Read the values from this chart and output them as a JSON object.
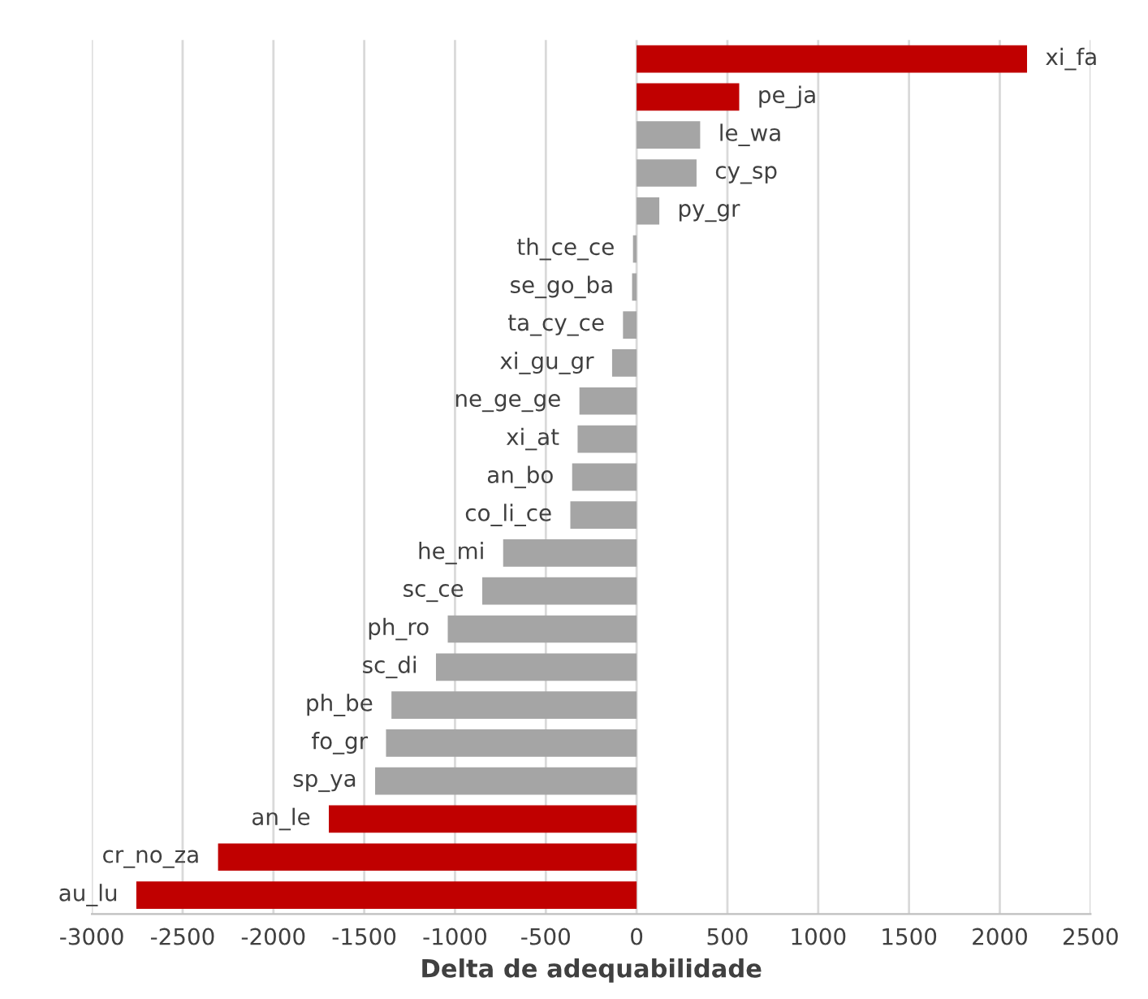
{
  "chart_data": {
    "type": "bar",
    "orientation": "horizontal",
    "xlabel": "Delta de adequabilidade",
    "categories": [
      "xi_fa",
      "pe_ja",
      "le_wa",
      "cy_sp",
      "py_gr",
      "th_ce_ce",
      "se_go_ba",
      "ta_cy_ce",
      "xi_gu_gr",
      "ne_ge_ge",
      "xi_at",
      "an_bo",
      "co_li_ce",
      "he_mi",
      "sc_ce",
      "ph_ro",
      "sc_di",
      "ph_be",
      "fo_gr",
      "sp_ya",
      "an_le",
      "cr_no_za",
      "au_lu"
    ],
    "values": [
      2150,
      565,
      350,
      330,
      125,
      -20,
      -25,
      -75,
      -135,
      -315,
      -325,
      -355,
      -365,
      -735,
      -850,
      -1040,
      -1105,
      -1350,
      -1380,
      -1440,
      -1695,
      -2305,
      -2755
    ],
    "colors": [
      "#c00000",
      "#c00000",
      "#a5a5a5",
      "#a5a5a5",
      "#a5a5a5",
      "#a5a5a5",
      "#a5a5a5",
      "#a5a5a5",
      "#a5a5a5",
      "#a5a5a5",
      "#a5a5a5",
      "#a5a5a5",
      "#a5a5a5",
      "#a5a5a5",
      "#a5a5a5",
      "#a5a5a5",
      "#a5a5a5",
      "#a5a5a5",
      "#a5a5a5",
      "#a5a5a5",
      "#c00000",
      "#c00000",
      "#c00000"
    ],
    "xlim": [
      -3000,
      2500
    ],
    "xticks": [
      -3000,
      -2500,
      -2000,
      -1500,
      -1000,
      -500,
      0,
      500,
      1000,
      1500,
      2000,
      2500
    ],
    "grid": "x",
    "legend": false
  }
}
